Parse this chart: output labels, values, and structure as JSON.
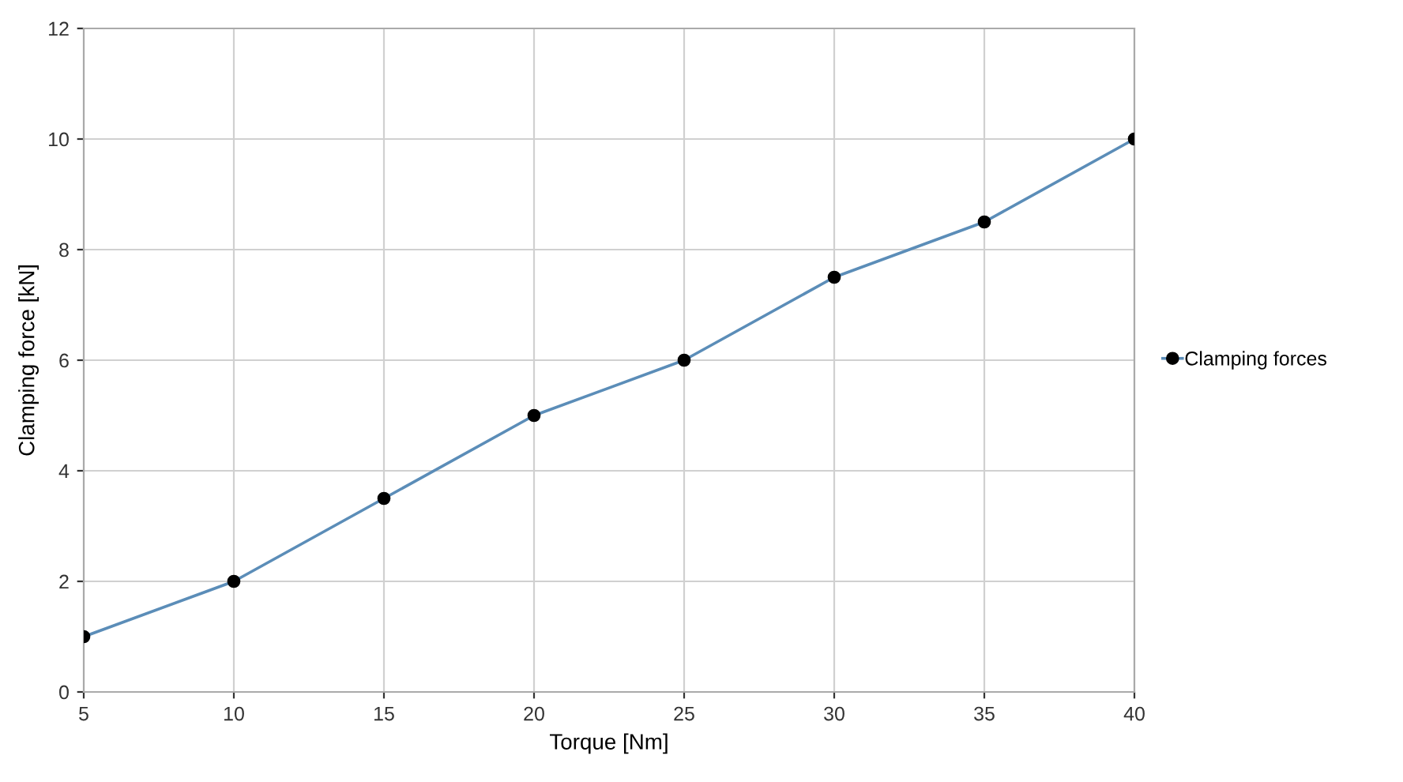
{
  "chart_data": {
    "type": "line",
    "xlabel": "Torque [Nm]",
    "ylabel": "Clamping force [kN]",
    "x": [
      5,
      10,
      15,
      20,
      25,
      30,
      35,
      40
    ],
    "series": [
      {
        "name": "Clamping forces",
        "color": "#5b8db8",
        "values": [
          1,
          2,
          3.5,
          5,
          6,
          7.5,
          8.5,
          10
        ]
      }
    ],
    "xlim": [
      5,
      40
    ],
    "xticks": [
      5,
      10,
      15,
      20,
      25,
      30,
      35,
      40
    ],
    "ylim": [
      0,
      12
    ],
    "yticks": [
      0,
      2,
      4,
      6,
      8,
      10,
      12
    ],
    "grid": true,
    "legend": "right",
    "marker": "circle",
    "line_style": "solid"
  }
}
